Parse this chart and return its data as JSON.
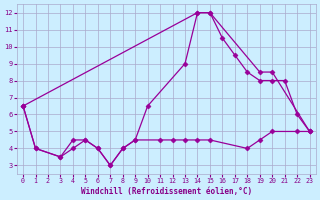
{
  "xlabel": "Windchill (Refroidissement éolien,°C)",
  "line1_x": [
    0,
    1,
    3,
    4,
    5,
    6,
    7,
    8,
    9,
    10,
    13,
    14,
    15,
    16,
    17,
    18,
    19,
    20,
    21,
    22,
    23
  ],
  "line1_y": [
    6.5,
    4.0,
    3.5,
    4.5,
    4.5,
    4.0,
    3.0,
    4.0,
    4.5,
    6.5,
    9.0,
    12.0,
    12.0,
    10.5,
    9.5,
    8.5,
    8.0,
    8.0,
    8.0,
    6.0,
    5.0
  ],
  "line2_x": [
    0,
    14,
    15,
    19,
    20,
    23
  ],
  "line2_y": [
    6.5,
    12.0,
    12.0,
    8.5,
    8.5,
    5.0
  ],
  "line3_x": [
    0,
    1,
    3,
    4,
    5,
    6,
    7,
    8,
    9,
    11,
    12,
    13,
    14,
    15,
    18,
    19,
    20,
    22,
    23
  ],
  "line3_y": [
    6.5,
    4.0,
    3.5,
    4.0,
    4.5,
    4.0,
    3.0,
    4.0,
    4.5,
    4.5,
    4.5,
    4.5,
    4.5,
    4.5,
    4.0,
    4.5,
    5.0,
    5.0,
    5.0
  ],
  "xlim": [
    -0.5,
    23.5
  ],
  "ylim": [
    2.5,
    12.5
  ],
  "yticks": [
    3,
    4,
    5,
    6,
    7,
    8,
    9,
    10,
    11,
    12
  ],
  "xticks": [
    0,
    1,
    2,
    3,
    4,
    5,
    6,
    7,
    8,
    9,
    10,
    11,
    12,
    13,
    14,
    15,
    16,
    17,
    18,
    19,
    20,
    21,
    22,
    23
  ],
  "line_color": "#990099",
  "bg_color": "#cceeff",
  "grid_color": "#aaaacc",
  "tick_color": "#880088",
  "label_color": "#880088",
  "marker_size": 2.5,
  "linewidth": 0.9
}
